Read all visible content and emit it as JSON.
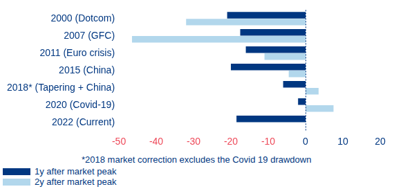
{
  "chart_data": {
    "type": "bar",
    "orientation": "horizontal",
    "categories": [
      "2000 (Dotcom)",
      "2007 (GFC)",
      "2011 (Euro crisis)",
      "2015 (China)",
      "2018* (Tapering + China)",
      "2020 (Covid-19)",
      "2022 (Current)"
    ],
    "series": [
      {
        "name": "1y after market peak",
        "color": "#003781",
        "values": [
          -21,
          -17.5,
          -16,
          -20,
          -6,
          -2,
          -18.5
        ]
      },
      {
        "name": "2y after market peak",
        "color": "#b2d7ec",
        "values": [
          -32,
          -46.5,
          -11,
          -4.5,
          3.5,
          7.5,
          null
        ]
      }
    ],
    "xlim": [
      -50,
      20
    ],
    "xticks": [
      -50,
      -40,
      -30,
      -20,
      -10,
      0,
      10,
      20
    ],
    "grid": false,
    "legend": "lower-left",
    "annotations": [
      "*2018 market correction excludes the Covid 19 drawdown"
    ]
  }
}
